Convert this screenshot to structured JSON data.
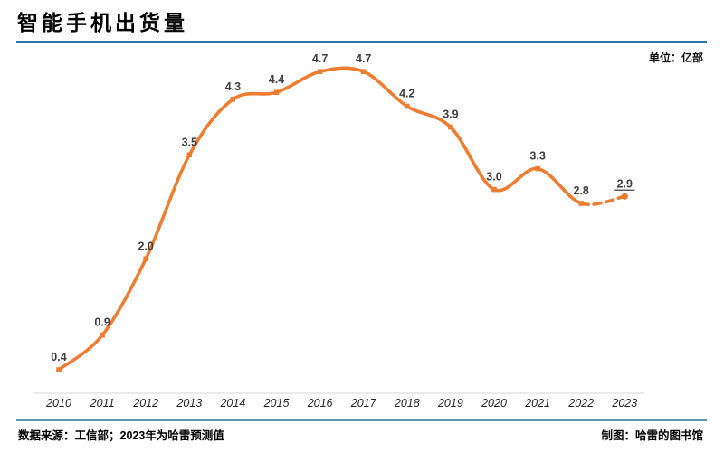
{
  "header": {
    "title": "智能手机出货量",
    "unit_label": "单位：亿部"
  },
  "footer": {
    "source": "数据来源：工信部；2023年为哈雷预测值",
    "credit": "制图：哈雷的图书馆"
  },
  "colors": {
    "line": "#ED7D31",
    "data_label": "#3F3F3F",
    "tick_label": "#262626",
    "axis_line": "#E4E4E4",
    "accent_rule_top": "#2879A8",
    "accent_rule_bottom": "#5E93AC"
  },
  "chart_data": {
    "type": "line",
    "title": "智能手机出货量",
    "unit": "亿部",
    "categories": [
      "2010",
      "2011",
      "2012",
      "2013",
      "2014",
      "2015",
      "2016",
      "2017",
      "2018",
      "2019",
      "2020",
      "2021",
      "2022",
      "2023"
    ],
    "series": [
      {
        "name": "智能手机出货量",
        "values": [
          0.4,
          0.9,
          2.0,
          3.5,
          4.3,
          4.4,
          4.7,
          4.7,
          4.2,
          3.9,
          3.0,
          3.3,
          2.8,
          2.9
        ]
      }
    ],
    "xlabel": "",
    "ylabel": "亿部",
    "ylim": [
      0,
      5.6
    ],
    "grid": false,
    "legend": "none",
    "data_labels": "all points, one decimal",
    "dashed_from_category": "2022",
    "forecast_category": "2023",
    "forecast_label_underlined": true,
    "x_tick_style": "italic"
  }
}
